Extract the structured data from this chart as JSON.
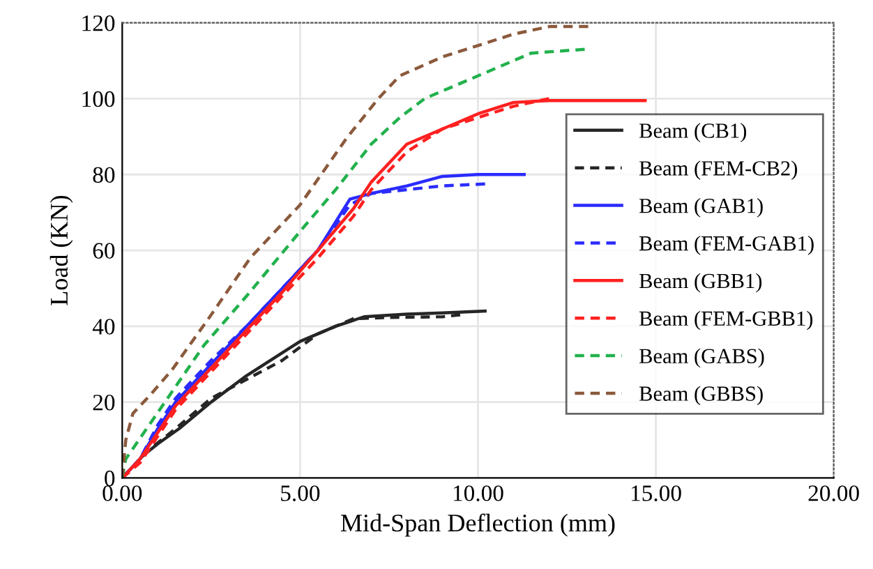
{
  "chart_data": {
    "type": "line",
    "xlabel": "Mid-Span Deflection (mm)",
    "ylabel": "Load (KN)",
    "xlim": [
      0,
      20
    ],
    "ylim": [
      0,
      120
    ],
    "xticks": [
      {
        "value": 0,
        "label": "0.00"
      },
      {
        "value": 5,
        "label": "5.00"
      },
      {
        "value": 10,
        "label": "10.00"
      },
      {
        "value": 15,
        "label": "15.00"
      },
      {
        "value": 20,
        "label": "20.00"
      }
    ],
    "yticks": [
      0,
      20,
      40,
      60,
      80,
      100,
      120
    ],
    "grid": true,
    "legend": "right",
    "marker": "none",
    "series": [
      {
        "name": "Beam (CB1)",
        "color": "#262626",
        "line_style": "solid",
        "x": [
          0,
          0.6,
          1,
          1.6,
          2.5,
          3.5,
          4.5,
          5,
          6,
          6.8,
          8,
          9,
          10.2
        ],
        "values": [
          0,
          6,
          9,
          13,
          20,
          27,
          33,
          36,
          40,
          42.5,
          43.2,
          43.5,
          44
        ]
      },
      {
        "name": "Beam (FEM-CB2)",
        "color": "#262626",
        "line_style": "dashed",
        "x": [
          0,
          0.7,
          1.5,
          2.5,
          3.5,
          4.5,
          5.5,
          6.5,
          7.5,
          9,
          9.5
        ],
        "values": [
          0,
          7,
          13,
          21,
          26,
          31,
          38,
          42,
          42.3,
          42.5,
          43
        ]
      },
      {
        "name": "Beam (GAB1)",
        "color": "#2b2bff",
        "line_style": "solid",
        "x": [
          0,
          0.5,
          1,
          1.5,
          2.5,
          3.5,
          4.5,
          5.5,
          6.4,
          7,
          8,
          9,
          10,
          11.3
        ],
        "values": [
          0,
          5,
          13,
          20,
          30,
          40,
          50,
          60,
          73.5,
          75,
          77,
          79.5,
          80,
          80
        ]
      },
      {
        "name": "Beam (FEM-GAB1)",
        "color": "#2b2bff",
        "line_style": "dashed",
        "x": [
          0,
          0.5,
          1,
          1.5,
          2.5,
          3.5,
          4.5,
          5.5,
          6.4,
          7,
          8,
          9,
          10.2
        ],
        "values": [
          0,
          5,
          14,
          21,
          31,
          40,
          50,
          60,
          72,
          75,
          76,
          77,
          77.5
        ]
      },
      {
        "name": "Beam (GBB1)",
        "color": "#ff2020",
        "line_style": "solid",
        "x": [
          0,
          0.5,
          1,
          1.5,
          2.5,
          3.5,
          4.5,
          5.5,
          6.5,
          7,
          8,
          9,
          10,
          11,
          12,
          14.7
        ],
        "values": [
          0,
          5,
          12,
          19,
          29,
          39,
          49,
          60,
          71,
          78,
          88,
          92,
          96,
          99,
          99.5,
          99.5
        ]
      },
      {
        "name": "Beam (FEM-GBB1)",
        "color": "#ff2020",
        "line_style": "dashed",
        "x": [
          0,
          0.5,
          1,
          1.5,
          2.5,
          3.5,
          4.5,
          5.5,
          6.5,
          7,
          8,
          9,
          10,
          11,
          12
        ],
        "values": [
          0,
          4,
          11,
          18,
          28,
          38,
          48,
          58,
          69,
          76,
          86,
          92,
          95,
          98,
          100
        ]
      },
      {
        "name": "Beam (GABS)",
        "color": "#22b14c",
        "line_style": "dashed",
        "x": [
          0,
          0.1,
          1.2,
          2.3,
          3.5,
          5,
          6,
          7,
          7.8,
          8.5,
          10,
          11.5,
          13
        ],
        "values": [
          0,
          5,
          20,
          35,
          48,
          65,
          76,
          88,
          95,
          100,
          106,
          112,
          113
        ]
      },
      {
        "name": "Beam (GBBS)",
        "color": "#8b5a3c",
        "line_style": "dashed",
        "x": [
          0,
          0.1,
          0.3,
          0.8,
          1.4,
          2.5,
          3.6,
          5,
          6.3,
          7.2,
          7.8,
          9,
          10,
          11,
          12,
          13.1
        ],
        "values": [
          0,
          10,
          17,
          22,
          28.5,
          43,
          58,
          72,
          89.5,
          100,
          106,
          111,
          114,
          117,
          119,
          119
        ]
      }
    ]
  }
}
